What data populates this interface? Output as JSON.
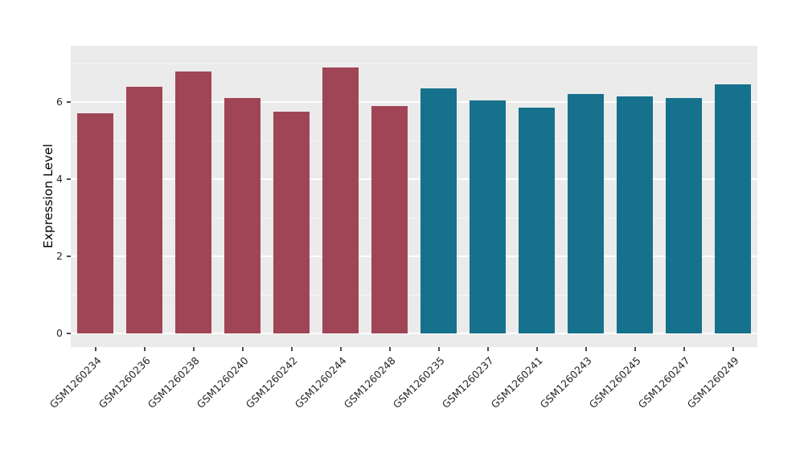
{
  "chart_data": {
    "type": "bar",
    "title": "",
    "xlabel": "",
    "ylabel": "Expression Level",
    "categories": [
      "GSM1260234",
      "GSM1260236",
      "GSM1260238",
      "GSM1260240",
      "GSM1260242",
      "GSM1260244",
      "GSM1260248",
      "GSM1260235",
      "GSM1260237",
      "GSM1260241",
      "GSM1260243",
      "GSM1260245",
      "GSM1260247",
      "GSM1260249"
    ],
    "values": [
      5.7,
      6.4,
      6.8,
      6.1,
      5.75,
      6.9,
      5.9,
      6.35,
      6.05,
      5.85,
      6.2,
      6.15,
      6.1,
      6.45
    ],
    "groups": [
      "red",
      "red",
      "red",
      "red",
      "red",
      "red",
      "red",
      "teal",
      "teal",
      "teal",
      "teal",
      "teal",
      "teal",
      "teal"
    ],
    "colors": {
      "red": "#A04556",
      "teal": "#16718C"
    },
    "yticks": [
      0,
      2,
      4,
      6
    ],
    "yticks_minor": [
      1,
      3,
      5,
      7
    ],
    "ylim": [
      -0.35,
      7.45
    ],
    "grid": true,
    "legend": "none",
    "panel_background": "#EBEBEB",
    "grid_color": "#FFFFFF"
  }
}
